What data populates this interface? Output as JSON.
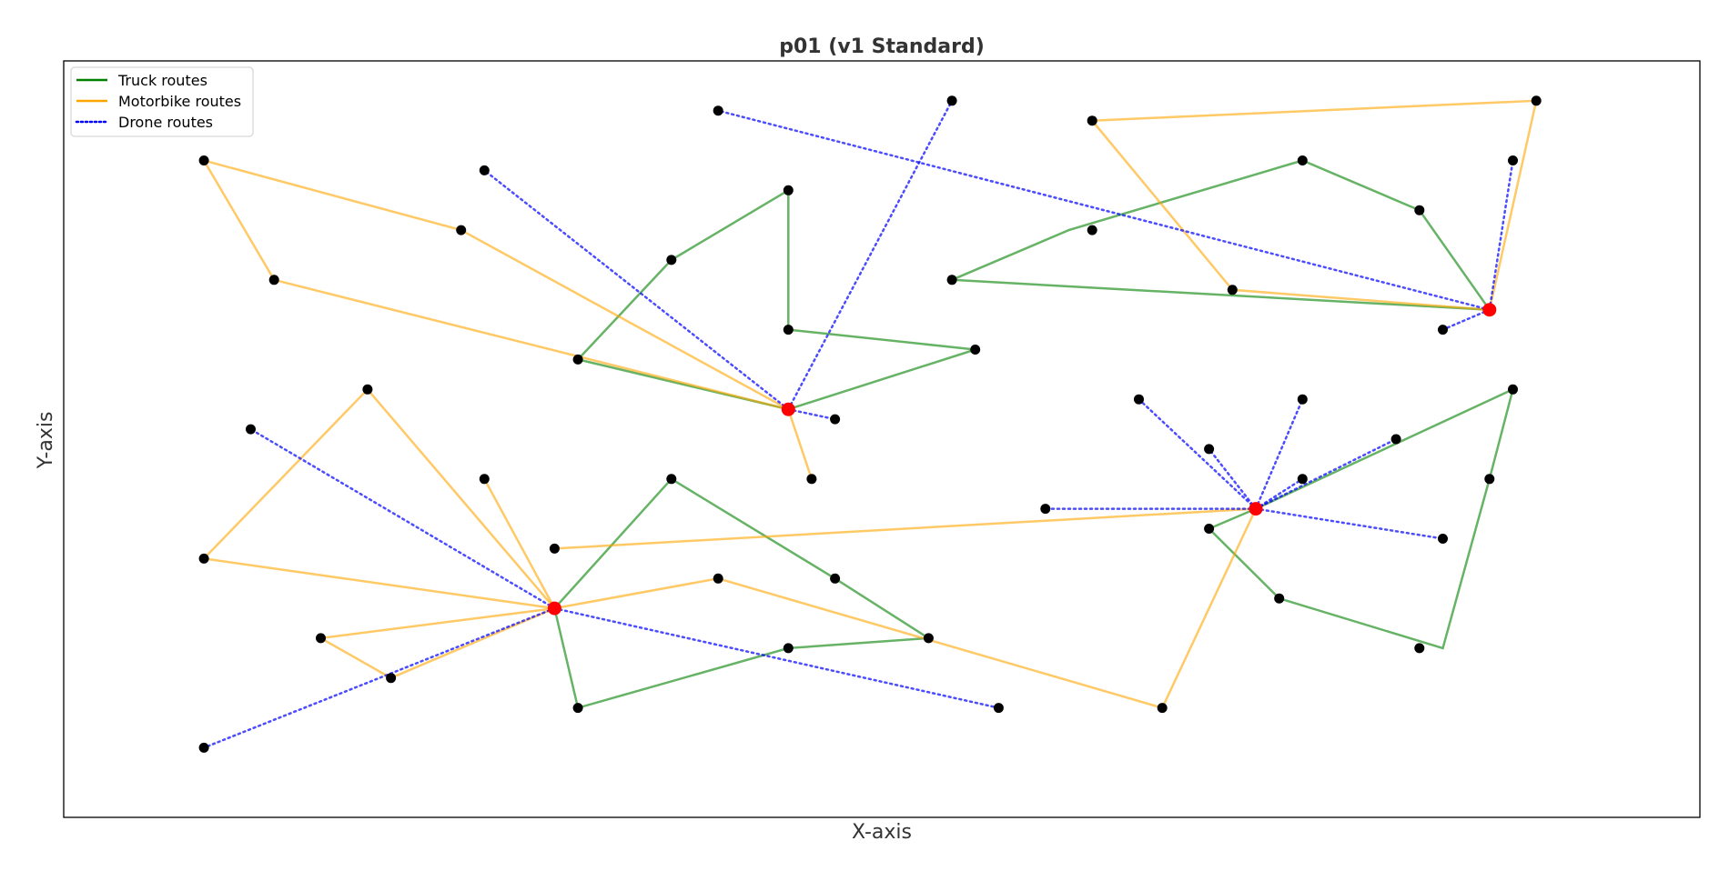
{
  "chart_data": {
    "type": "scatter",
    "title": "p01 (v1 Standard)",
    "xlabel": "X-axis",
    "ylabel": "Y-axis",
    "xlim": [
      -6,
      64
    ],
    "ylim": [
      -6,
      70
    ],
    "grid": false,
    "ticks_shown": false,
    "legend": {
      "placement": "top-left",
      "entries": [
        {
          "label": "Truck routes",
          "style": "solid",
          "color": "#008000"
        },
        {
          "label": "Motorbike routes",
          "style": "solid",
          "color": "#FFA500"
        },
        {
          "label": "Drone routes",
          "style": "dotted",
          "color": "#0000FF"
        }
      ]
    },
    "depots": [
      {
        "x": 25,
        "y": 35
      },
      {
        "x": 15,
        "y": 15
      },
      {
        "x": 45,
        "y": 25
      },
      {
        "x": 55,
        "y": 45
      }
    ],
    "customers": [
      {
        "x": 0,
        "y": 60
      },
      {
        "x": 3,
        "y": 48
      },
      {
        "x": 11,
        "y": 53
      },
      {
        "x": 12,
        "y": 59
      },
      {
        "x": 16,
        "y": 40
      },
      {
        "x": 20,
        "y": 50
      },
      {
        "x": 25,
        "y": 57
      },
      {
        "x": 22,
        "y": 65
      },
      {
        "x": 25,
        "y": 43
      },
      {
        "x": 32,
        "y": 66
      },
      {
        "x": 33,
        "y": 41
      },
      {
        "x": 27,
        "y": 34
      },
      {
        "x": 26,
        "y": 28
      },
      {
        "x": 38,
        "y": 53
      },
      {
        "x": 38,
        "y": 64
      },
      {
        "x": 47,
        "y": 60
      },
      {
        "x": 52,
        "y": 55
      },
      {
        "x": 32,
        "y": 48
      },
      {
        "x": 44,
        "y": 47
      },
      {
        "x": 53,
        "y": 43
      },
      {
        "x": 57,
        "y": 66
      },
      {
        "x": 56,
        "y": 60
      },
      {
        "x": 7,
        "y": 37
      },
      {
        "x": 2,
        "y": 33
      },
      {
        "x": 12,
        "y": 28
      },
      {
        "x": 0,
        "y": 20
      },
      {
        "x": 5,
        "y": 12
      },
      {
        "x": 8,
        "y": 8
      },
      {
        "x": 0,
        "y": 1
      },
      {
        "x": 16,
        "y": 5
      },
      {
        "x": 20,
        "y": 28
      },
      {
        "x": 15,
        "y": 21
      },
      {
        "x": 22,
        "y": 18
      },
      {
        "x": 27,
        "y": 18
      },
      {
        "x": 25,
        "y": 11
      },
      {
        "x": 31,
        "y": 12
      },
      {
        "x": 34,
        "y": 5
      },
      {
        "x": 41,
        "y": 5
      },
      {
        "x": 40,
        "y": 36
      },
      {
        "x": 47,
        "y": 36
      },
      {
        "x": 43,
        "y": 31
      },
      {
        "x": 47,
        "y": 28
      },
      {
        "x": 51,
        "y": 32
      },
      {
        "x": 36,
        "y": 25
      },
      {
        "x": 43,
        "y": 23
      },
      {
        "x": 46,
        "y": 16
      },
      {
        "x": 53,
        "y": 22
      },
      {
        "x": 56,
        "y": 37
      },
      {
        "x": 55,
        "y": 28
      },
      {
        "x": 52,
        "y": 11
      }
    ],
    "series": [
      {
        "name": "Truck routes",
        "kind": "truck",
        "color": "#008000",
        "routes": [
          [
            {
              "x": 25,
              "y": 35
            },
            {
              "x": 16,
              "y": 40
            },
            {
              "x": 20,
              "y": 50
            },
            {
              "x": 25,
              "y": 57
            },
            {
              "x": 25,
              "y": 43
            },
            {
              "x": 33,
              "y": 41
            },
            {
              "x": 25,
              "y": 35
            }
          ],
          [
            {
              "x": 55,
              "y": 45
            },
            {
              "x": 52,
              "y": 55
            },
            {
              "x": 47,
              "y": 60
            },
            {
              "x": 37,
              "y": 53
            },
            {
              "x": 32,
              "y": 48
            },
            {
              "x": 55,
              "y": 45
            }
          ],
          [
            {
              "x": 15,
              "y": 15
            },
            {
              "x": 20,
              "y": 28
            },
            {
              "x": 27,
              "y": 18
            },
            {
              "x": 31,
              "y": 12
            },
            {
              "x": 25,
              "y": 11
            },
            {
              "x": 16,
              "y": 5
            },
            {
              "x": 15,
              "y": 15
            }
          ],
          [
            {
              "x": 45,
              "y": 25
            },
            {
              "x": 56,
              "y": 37
            },
            {
              "x": 55,
              "y": 28
            },
            {
              "x": 53,
              "y": 11
            },
            {
              "x": 46,
              "y": 16
            },
            {
              "x": 43,
              "y": 23
            },
            {
              "x": 45,
              "y": 25
            }
          ]
        ]
      },
      {
        "name": "Motorbike routes",
        "kind": "motorbike",
        "color": "#FFA500",
        "routes": [
          [
            {
              "x": 25,
              "y": 35
            },
            {
              "x": 11,
              "y": 53
            },
            {
              "x": 0,
              "y": 60
            },
            {
              "x": 3,
              "y": 48
            },
            {
              "x": 25,
              "y": 35
            }
          ],
          [
            {
              "x": 25,
              "y": 35
            },
            {
              "x": 26,
              "y": 28
            },
            {
              "x": 25,
              "y": 35
            }
          ],
          [
            {
              "x": 55,
              "y": 45
            },
            {
              "x": 57,
              "y": 66
            },
            {
              "x": 38,
              "y": 64
            },
            {
              "x": 44,
              "y": 47
            },
            {
              "x": 55,
              "y": 45
            }
          ],
          [
            {
              "x": 15,
              "y": 15
            },
            {
              "x": 7,
              "y": 37
            },
            {
              "x": 0,
              "y": 20
            },
            {
              "x": 15,
              "y": 15
            }
          ],
          [
            {
              "x": 15,
              "y": 15
            },
            {
              "x": 12,
              "y": 28
            },
            {
              "x": 15,
              "y": 15
            }
          ],
          [
            {
              "x": 15,
              "y": 15
            },
            {
              "x": 5,
              "y": 12
            },
            {
              "x": 8,
              "y": 8
            },
            {
              "x": 15,
              "y": 15
            }
          ],
          [
            {
              "x": 15,
              "y": 15
            },
            {
              "x": 22,
              "y": 18
            },
            {
              "x": 41,
              "y": 5
            },
            {
              "x": 45,
              "y": 25
            },
            {
              "x": 15,
              "y": 21
            }
          ]
        ]
      },
      {
        "name": "Drone routes",
        "kind": "drone",
        "color": "#0000FF",
        "routes": [
          [
            {
              "x": 25,
              "y": 35
            },
            {
              "x": 12,
              "y": 59
            }
          ],
          [
            {
              "x": 25,
              "y": 35
            },
            {
              "x": 32,
              "y": 66
            }
          ],
          [
            {
              "x": 25,
              "y": 35
            },
            {
              "x": 27,
              "y": 34
            }
          ],
          [
            {
              "x": 55,
              "y": 45
            },
            {
              "x": 22,
              "y": 65
            }
          ],
          [
            {
              "x": 55,
              "y": 45
            },
            {
              "x": 56,
              "y": 60
            }
          ],
          [
            {
              "x": 55,
              "y": 45
            },
            {
              "x": 53,
              "y": 43
            }
          ],
          [
            {
              "x": 15,
              "y": 15
            },
            {
              "x": 2,
              "y": 33
            }
          ],
          [
            {
              "x": 15,
              "y": 15
            },
            {
              "x": 0,
              "y": 1
            }
          ],
          [
            {
              "x": 15,
              "y": 15
            },
            {
              "x": 34,
              "y": 5
            }
          ],
          [
            {
              "x": 45,
              "y": 25
            },
            {
              "x": 40,
              "y": 36
            }
          ],
          [
            {
              "x": 45,
              "y": 25
            },
            {
              "x": 43,
              "y": 31
            }
          ],
          [
            {
              "x": 45,
              "y": 25
            },
            {
              "x": 47,
              "y": 36
            }
          ],
          [
            {
              "x": 45,
              "y": 25
            },
            {
              "x": 47,
              "y": 28
            }
          ],
          [
            {
              "x": 45,
              "y": 25
            },
            {
              "x": 51,
              "y": 32
            }
          ],
          [
            {
              "x": 45,
              "y": 25
            },
            {
              "x": 36,
              "y": 25
            }
          ],
          [
            {
              "x": 45,
              "y": 25
            },
            {
              "x": 53,
              "y": 22
            }
          ]
        ]
      }
    ],
    "colors": {
      "depot": "#FF0000",
      "customer": "#000000",
      "truck": "#008000",
      "motorbike": "#FFA500",
      "drone": "#0000FF"
    }
  }
}
